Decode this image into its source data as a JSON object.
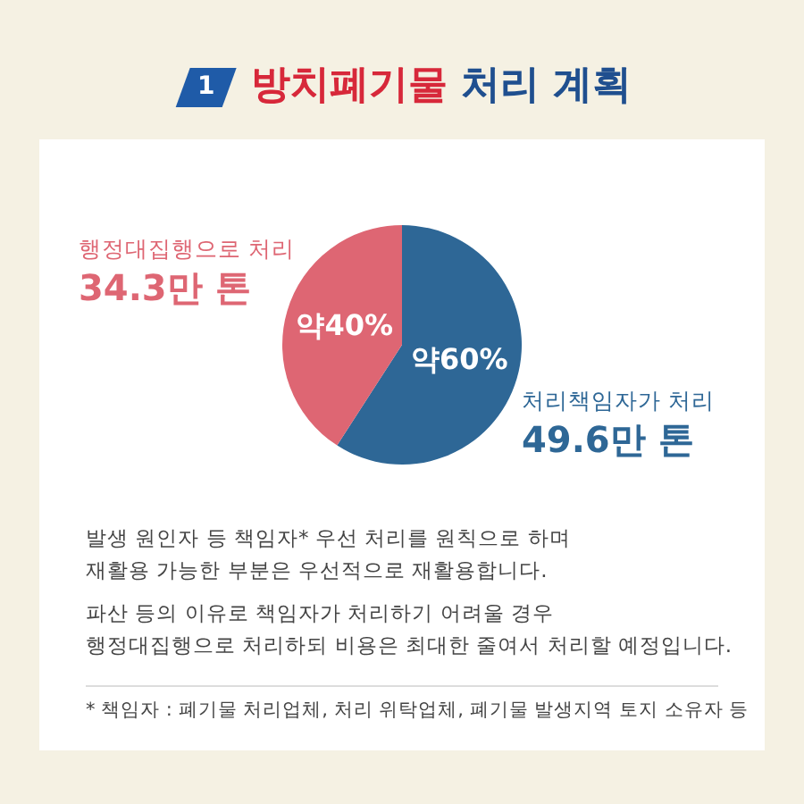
{
  "chart_data": {
    "type": "pie",
    "title": "방치폐기물 처리 계획",
    "categories": [
      "처리책임자가 처리",
      "행정대집행으로 처리"
    ],
    "values": [
      49.6,
      34.3
    ],
    "colors": [
      "#2e6796",
      "#de6673"
    ],
    "value_labels": [
      "49.6만 톤",
      "34.3만 톤"
    ],
    "legend": false,
    "annotations": [
      "1",
      {
        "text": "약60%",
        "x": "처리책임자가 처리"
      },
      {
        "text": "약40%",
        "x": "행정대집행으로 처리"
      },
      "발생 원인자 등 책임자* 우선 처리를 원칙으로 하며",
      "재활용 가능한 부분은 우선적으로 재활용합니다.",
      "파산 등의 이유로 책임자가 처리하기 어려울 경우",
      "행정대집행으로 처리하되 비용은 최대한 줄여서 처리할 예정입니다.",
      "* 책임자 : 폐기물 처리업체, 처리 위탁업체, 폐기물 발생지역 토지 소유자 등"
    ]
  }
}
